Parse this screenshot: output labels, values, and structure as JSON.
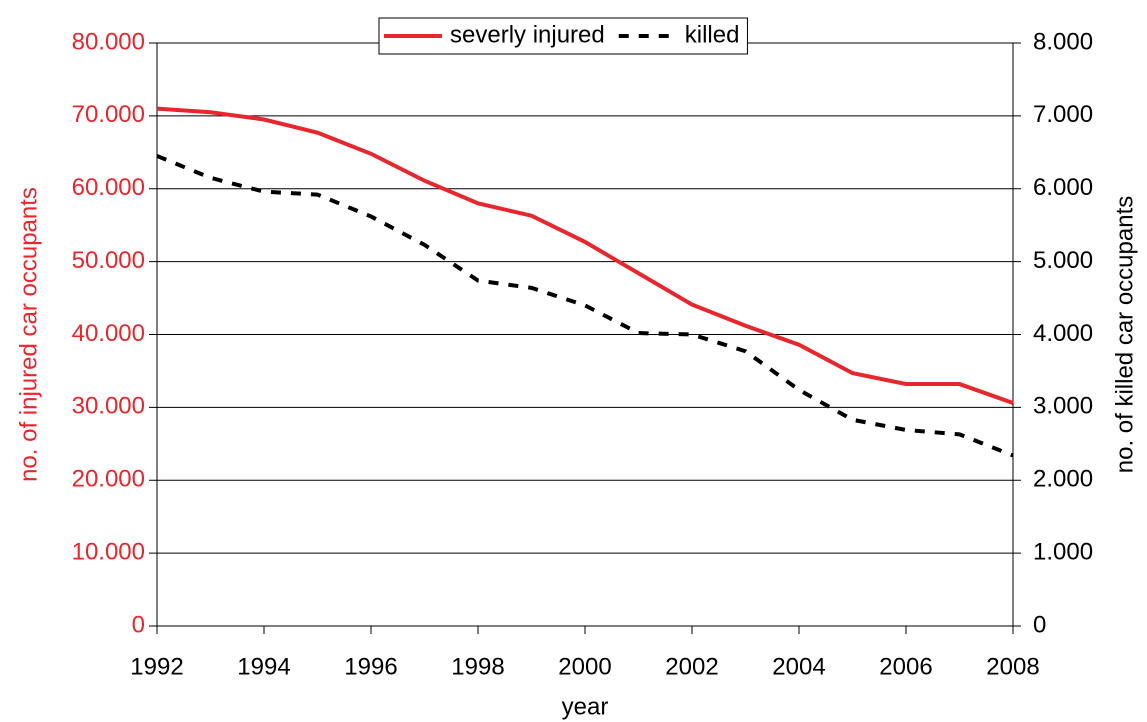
{
  "chart_data": {
    "type": "line",
    "x_label": "year",
    "y_label": "no. of injured car occupants",
    "y2_label": "no. of killed car occupants",
    "x": [
      1992,
      1993,
      1994,
      1995,
      1996,
      1997,
      1998,
      1999,
      2000,
      2001,
      2002,
      2003,
      2004,
      2005,
      2006,
      2007,
      2008
    ],
    "series": [
      {
        "name": "severly injured",
        "color": "#e8262d",
        "line_style": "solid",
        "axis": "y",
        "values": [
          71000,
          70500,
          69500,
          67700,
          64800,
          61100,
          58000,
          56300,
          52700,
          48400,
          44100,
          41200,
          38600,
          34700,
          33200,
          33200,
          30600
        ]
      },
      {
        "name": "killed",
        "color": "#000000",
        "line_style": "dashed",
        "axis": "y2",
        "values": [
          6450,
          6150,
          5960,
          5920,
          5620,
          5230,
          4740,
          4640,
          4400,
          4020,
          4000,
          3770,
          3240,
          2830,
          2690,
          2630,
          2340
        ]
      }
    ],
    "xlim": [
      1992,
      2008
    ],
    "xticks": [
      1992,
      1994,
      1996,
      1998,
      2000,
      2002,
      2004,
      2006,
      2008
    ],
    "ylim": [
      0,
      80000
    ],
    "yticks": [
      0,
      {
        "value": 10000,
        "label": "10.000"
      },
      {
        "value": 20000,
        "label": "20.000"
      },
      {
        "value": 30000,
        "label": "30.000"
      },
      {
        "value": 40000,
        "label": "40.000"
      },
      {
        "value": 50000,
        "label": "50.000"
      },
      {
        "value": 60000,
        "label": "60.000"
      },
      {
        "value": 70000,
        "label": "70.000"
      },
      {
        "value": 80000,
        "label": "80.000"
      }
    ],
    "y2lim": [
      0,
      8000
    ],
    "y2ticks": [
      0,
      {
        "value": 1000,
        "label": "1.000"
      },
      {
        "value": 2000,
        "label": "2.000"
      },
      {
        "value": 3000,
        "label": "3.000"
      },
      {
        "value": 4000,
        "label": "4.000"
      },
      {
        "value": 5000,
        "label": "5.000"
      },
      {
        "value": 6000,
        "label": "6.000"
      },
      {
        "value": 7000,
        "label": "7.000"
      },
      {
        "value": 8000,
        "label": "8.000"
      }
    ],
    "grid": true,
    "legend": "top"
  }
}
